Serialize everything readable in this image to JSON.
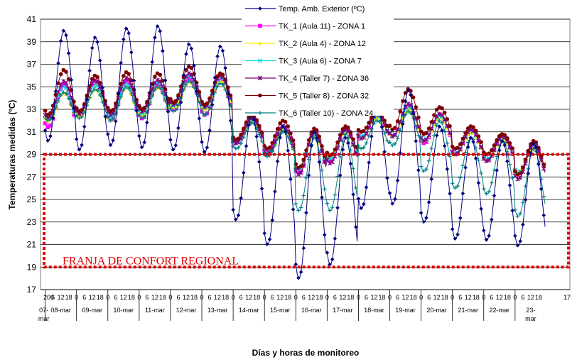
{
  "chart_data": {
    "type": "line",
    "xlabel": "Días y horas de monitoreo",
    "ylabel": "Temperaturas medidas (ºC)",
    "ylim": [
      17,
      41
    ],
    "yticks": [
      "17",
      "19",
      "21",
      "23",
      "25",
      "27",
      "29",
      "31",
      "33",
      "35",
      "37",
      "39",
      "41"
    ],
    "grid": true,
    "legend_position": "top-right",
    "day_labels": [
      "07-mar",
      "08-mar",
      "09-mar",
      "10-mar",
      "11-mar",
      "12-mar",
      "13-mar",
      "14-mar",
      "15-mar",
      "16-mar",
      "17-mar",
      "18-mar",
      "19-mar",
      "20-mar",
      "21-mar",
      "22-mar",
      "23-mar"
    ],
    "hour_ticks_first": "20",
    "hour_ticks_last": "17",
    "hour_ticks_pattern": [
      "0",
      "6",
      "12",
      "18"
    ],
    "comfort_band": {
      "label": "FRANJA DE CONFORT REGIONAL",
      "y_min": 19,
      "y_max": 29,
      "color": "#e00000"
    },
    "series": [
      {
        "name": "Temp. Amb. Exterior (ºC)",
        "color": "#000080",
        "marker": "diamond",
        "daily": [
          [
            30.2,
            40.0
          ],
          [
            29.4,
            39.4
          ],
          [
            29.8,
            40.2
          ],
          [
            29.6,
            40.4
          ],
          [
            29.4,
            38.8
          ],
          [
            29.2,
            38.6
          ],
          [
            23.2,
            32.5
          ],
          [
            21.0,
            31.5
          ],
          [
            18.0,
            31.0
          ],
          [
            19.2,
            30.5
          ],
          [
            24.2,
            33.3
          ],
          [
            24.6,
            34.7
          ],
          [
            23.0,
            31.5
          ],
          [
            21.5,
            30.5
          ],
          [
            21.4,
            30.2
          ],
          [
            20.9,
            30.0
          ]
        ]
      },
      {
        "name": "TK_1 (Aula 11) - ZONA 1",
        "color": "#ff00ff",
        "marker": "square",
        "daily": [
          [
            31.4,
            35.2
          ],
          [
            32.5,
            35.5
          ],
          [
            32.0,
            35.5
          ],
          [
            32.2,
            35.2
          ],
          [
            33.0,
            35.8
          ],
          [
            32.5,
            35.8
          ],
          [
            30.0,
            32.0
          ],
          [
            29.2,
            31.5
          ],
          [
            27.4,
            30.8
          ],
          [
            28.5,
            31.2
          ],
          [
            30.5,
            32.5
          ],
          [
            30.6,
            33.2
          ],
          [
            30.0,
            32.5
          ],
          [
            29.0,
            31.0
          ],
          [
            28.5,
            30.6
          ],
          [
            27.3,
            29.8
          ]
        ]
      },
      {
        "name": "TK_2 (Aula 4) - ZONA 12",
        "color": "#ffee00",
        "marker": "triangle",
        "daily": [
          [
            32.0,
            34.5
          ],
          [
            32.4,
            34.8
          ],
          [
            32.0,
            35.0
          ],
          [
            32.5,
            35.0
          ],
          [
            33.2,
            35.5
          ],
          [
            33.0,
            35.5
          ],
          [
            30.2,
            32.0
          ],
          [
            29.0,
            31.3
          ],
          [
            27.8,
            30.6
          ],
          [
            28.7,
            31.0
          ],
          [
            30.5,
            32.3
          ],
          [
            30.6,
            33.0
          ],
          [
            30.2,
            32.3
          ],
          [
            29.0,
            31.0
          ],
          [
            28.5,
            30.4
          ],
          [
            27.5,
            29.6
          ]
        ]
      },
      {
        "name": "TK_3 (Aula 6) - ZONA 7",
        "color": "#00dddd",
        "marker": "x",
        "daily": [
          [
            32.2,
            35.0
          ],
          [
            32.6,
            35.2
          ],
          [
            32.3,
            35.3
          ],
          [
            32.6,
            35.4
          ],
          [
            33.3,
            36.0
          ],
          [
            33.1,
            35.8
          ],
          [
            30.1,
            32.1
          ],
          [
            29.1,
            31.4
          ],
          [
            27.6,
            30.8
          ],
          [
            28.6,
            31.1
          ],
          [
            30.6,
            32.4
          ],
          [
            30.7,
            33.2
          ],
          [
            30.3,
            32.4
          ],
          [
            29.1,
            31.1
          ],
          [
            28.6,
            30.5
          ],
          [
            27.4,
            29.8
          ]
        ]
      },
      {
        "name": "TK_4 (Taller 7) - ZONA 36",
        "color": "#800080",
        "marker": "star",
        "daily": [
          [
            32.2,
            35.5
          ],
          [
            32.6,
            35.6
          ],
          [
            32.5,
            35.8
          ],
          [
            32.8,
            35.6
          ],
          [
            33.4,
            36.2
          ],
          [
            33.2,
            36.0
          ],
          [
            30.0,
            32.2
          ],
          [
            29.0,
            31.5
          ],
          [
            27.2,
            31.0
          ],
          [
            28.2,
            31.2
          ],
          [
            30.4,
            32.6
          ],
          [
            30.6,
            33.5
          ],
          [
            30.2,
            32.6
          ],
          [
            29.0,
            31.2
          ],
          [
            28.4,
            30.6
          ],
          [
            26.8,
            29.9
          ]
        ]
      },
      {
        "name": "TK_5 (Taller 8) - ZONA 32",
        "color": "#800000",
        "marker": "circle",
        "daily": [
          [
            32.5,
            36.5
          ],
          [
            32.8,
            36.0
          ],
          [
            32.8,
            36.3
          ],
          [
            33.0,
            36.2
          ],
          [
            33.6,
            36.8
          ],
          [
            33.4,
            36.2
          ],
          [
            30.3,
            32.5
          ],
          [
            29.5,
            32.0
          ],
          [
            27.8,
            31.3
          ],
          [
            28.9,
            31.5
          ],
          [
            31.0,
            32.8
          ],
          [
            31.2,
            34.8
          ],
          [
            30.8,
            33.2
          ],
          [
            29.5,
            31.5
          ],
          [
            29.0,
            30.8
          ],
          [
            27.2,
            30.2
          ]
        ]
      },
      {
        "name": "TK_6 (Taller 10) - ZONA 24",
        "color": "#008080",
        "marker": "plus",
        "daily": [
          [
            32.0,
            34.5
          ],
          [
            32.2,
            34.8
          ],
          [
            32.0,
            35.0
          ],
          [
            32.2,
            35.0
          ],
          [
            32.8,
            35.5
          ],
          [
            32.5,
            35.3
          ],
          [
            29.5,
            31.8
          ],
          [
            28.8,
            31.0
          ],
          [
            24.0,
            30.5
          ],
          [
            24.0,
            30.8
          ],
          [
            29.5,
            32.0
          ],
          [
            29.8,
            32.8
          ],
          [
            27.5,
            32.0
          ],
          [
            26.0,
            30.5
          ],
          [
            25.5,
            30.2
          ],
          [
            23.5,
            29.5
          ]
        ]
      }
    ]
  }
}
